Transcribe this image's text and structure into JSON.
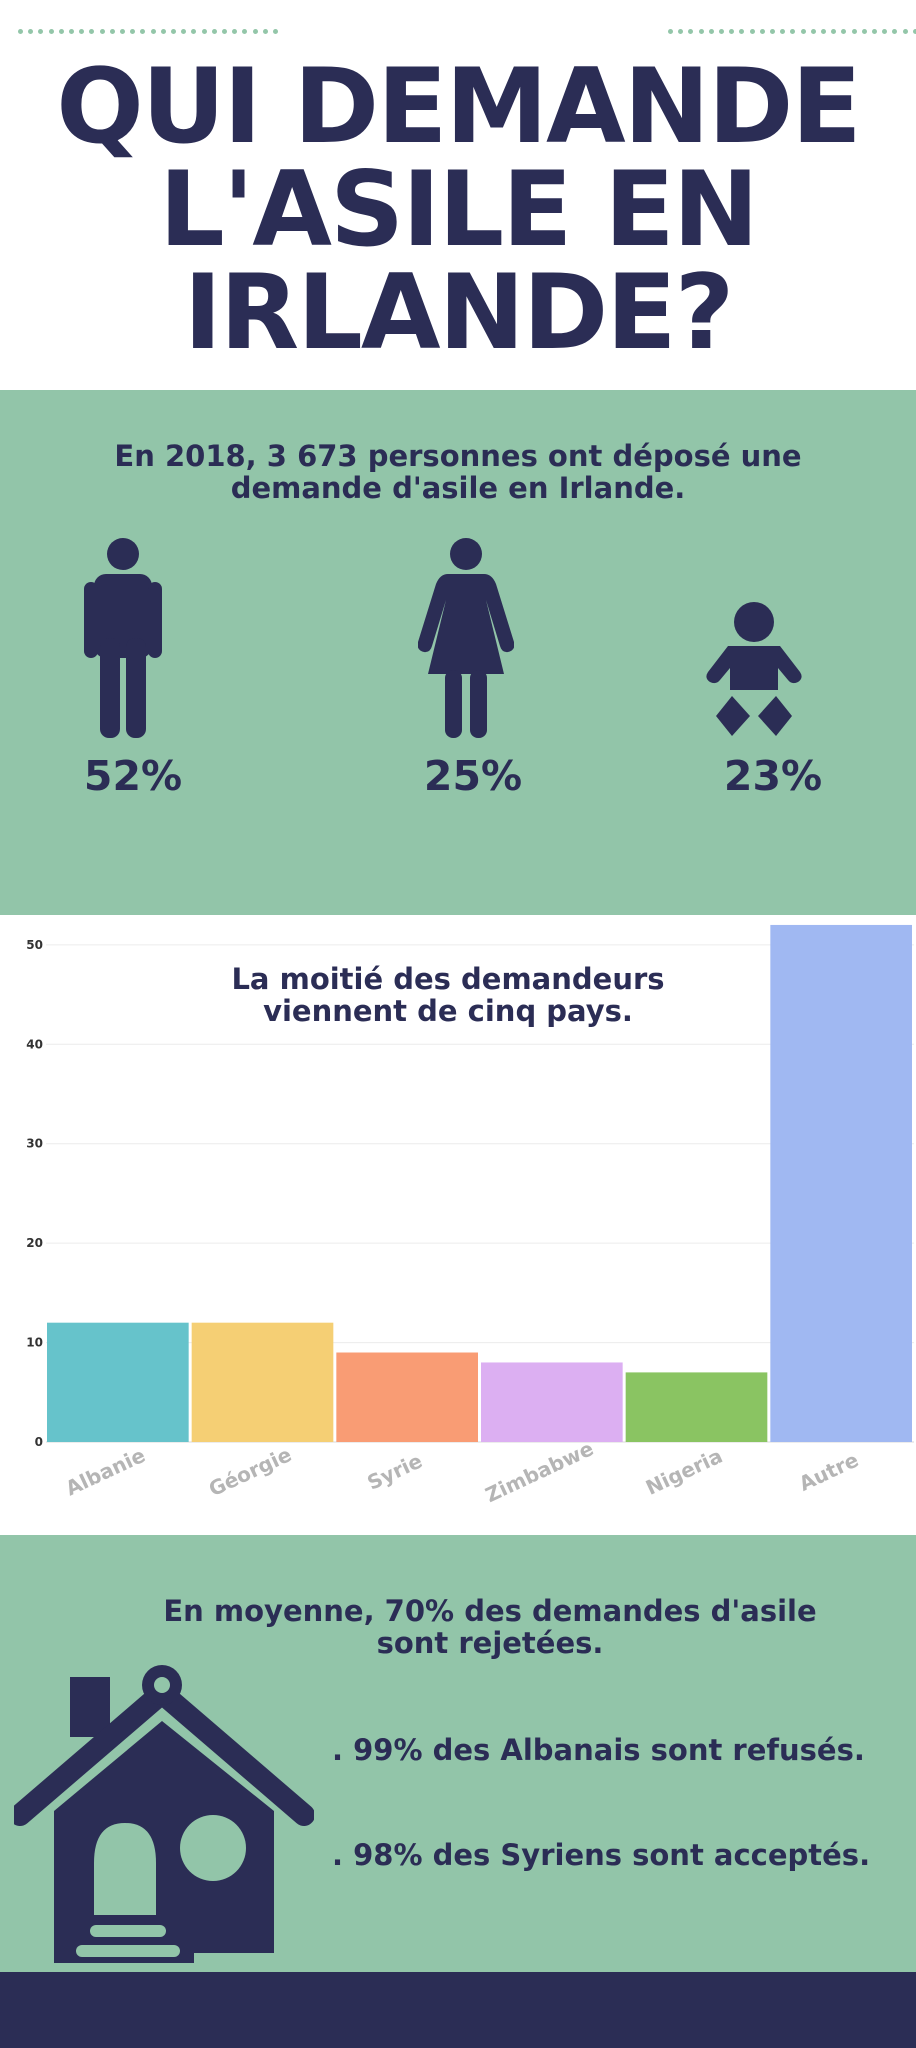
{
  "header": {
    "title_lines": [
      "QUI DEMANDE",
      "L'ASILE EN",
      "IRLANDE?"
    ]
  },
  "demographics": {
    "intro_line1": "En 2018, 3 673 personnes ont déposé une",
    "intro_line2": "demande d'asile en Irlande.",
    "men": {
      "percent": "52%",
      "icon": "man-icon"
    },
    "women": {
      "percent": "25%",
      "icon": "woman-icon"
    },
    "children": {
      "percent": "23%",
      "icon": "baby-icon"
    }
  },
  "chart_data": {
    "type": "bar",
    "title_line1": "La moitié des demandeurs",
    "title_line2": "viennent de cinq pays.",
    "categories": [
      "Albanie",
      "Géorgie",
      "Syrie",
      "Zimbabwe",
      "Nigeria",
      "Autre"
    ],
    "values": [
      12,
      12,
      9,
      8,
      7,
      52
    ],
    "colors": [
      "#66c3cb",
      "#f5cf74",
      "#f99c74",
      "#dcaff2",
      "#8ac462",
      "#a0b8f2"
    ],
    "yticks": [
      "0",
      "10",
      "20",
      "30",
      "40",
      "50"
    ],
    "ylim": [
      0,
      53
    ],
    "grid": true
  },
  "outcomes": {
    "rejection_line1": "En moyenne, 70% des demandes d'asile",
    "rejection_line2": "sont rejetées.",
    "albanians": ". 99% des Albanais sont refusés.",
    "syrians": ". 98% des Syriens sont acceptés.",
    "icon": "house-icon"
  },
  "colors": {
    "navy": "#2b2d55",
    "green": "#92c5a9",
    "white": "#ffffff"
  }
}
